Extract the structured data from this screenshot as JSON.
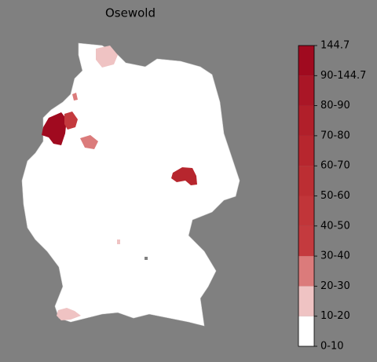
{
  "title": "Osewold",
  "colorbar": {
    "labels": [
      "0-10",
      "10-20",
      "20-30",
      "30-40",
      "40-50",
      "50-60",
      "60-70",
      "70-80",
      "80-90",
      "90-144.7",
      "144.7"
    ],
    "colors": [
      "#ffffff",
      "#efc3c3",
      "#db7b7b",
      "#c43a3e",
      "#c13539",
      "#bc2e33",
      "#b7262e",
      "#b11f2a",
      "#aa1626",
      "#a00a1f"
    ]
  }
}
